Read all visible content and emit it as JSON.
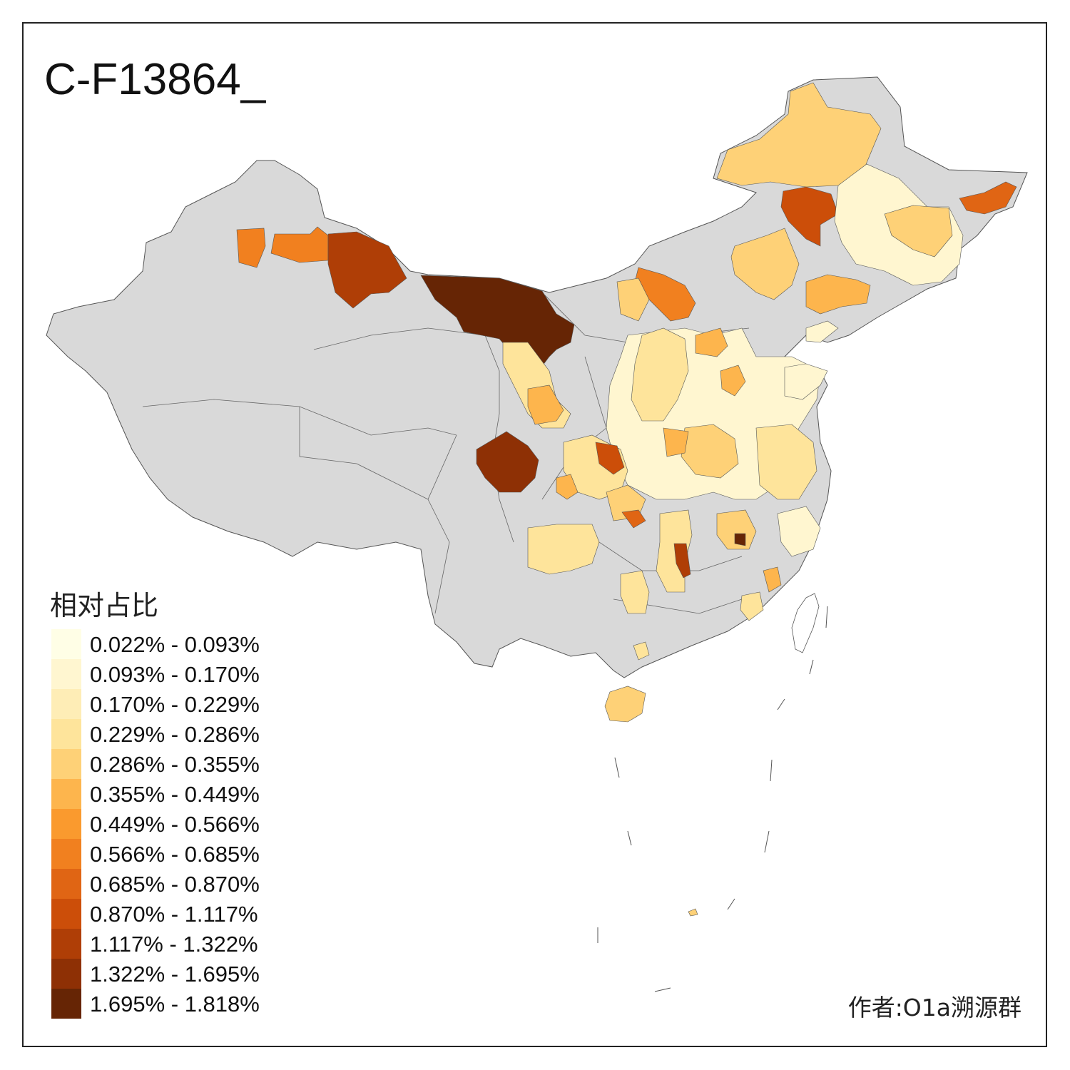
{
  "title": "C-F13864_",
  "legend": {
    "title": "相对占比",
    "items": [
      {
        "label": "0.022% - 0.093%",
        "color": "#FFFEE6"
      },
      {
        "label": "0.093% - 0.170%",
        "color": "#FFF6D0"
      },
      {
        "label": "0.170% - 0.229%",
        "color": "#FEEDB6"
      },
      {
        "label": "0.229% - 0.286%",
        "color": "#FEE49B"
      },
      {
        "label": "0.286% - 0.355%",
        "color": "#FED177"
      },
      {
        "label": "0.355% - 0.449%",
        "color": "#FDB54D"
      },
      {
        "label": "0.449% - 0.566%",
        "color": "#FA9A2E"
      },
      {
        "label": "0.566% - 0.685%",
        "color": "#F1801F"
      },
      {
        "label": "0.685% - 0.870%",
        "color": "#E06514"
      },
      {
        "label": "0.870% - 1.117%",
        "color": "#CC4E09"
      },
      {
        "label": "1.117% - 1.322%",
        "color": "#AF3E06"
      },
      {
        "label": "1.322% - 1.695%",
        "color": "#8E3005"
      },
      {
        "label": "1.695% - 1.818%",
        "color": "#662505"
      }
    ]
  },
  "credit": "作者:O1a溯源群",
  "colors": {
    "no_data": "#D9D9D9",
    "border": "#555555",
    "frame": "#222222"
  }
}
